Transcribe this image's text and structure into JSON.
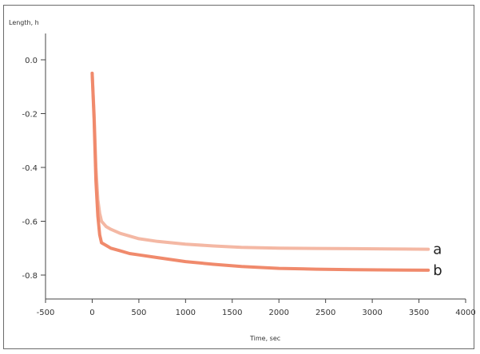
{
  "chart_data": {
    "type": "line",
    "xlabel": "Time, sec",
    "ylabel": "Length, h",
    "xlim": [
      -500,
      4000
    ],
    "ylim": [
      -0.9,
      0.05
    ],
    "xticks": [
      "-500",
      "0",
      "500",
      "1000",
      "1500",
      "2000",
      "2500",
      "3000",
      "3500",
      "4000"
    ],
    "yticks": [
      "0.0",
      "-0.2",
      "-0.4",
      "-0.6",
      "-0.8"
    ],
    "series": [
      {
        "name": "a",
        "color": "#f4b8a4",
        "x": [
          0,
          20,
          40,
          60,
          80,
          100,
          150,
          200,
          300,
          400,
          500,
          700,
          1000,
          1300,
          1600,
          2000,
          2400,
          2800,
          3200,
          3600
        ],
        "y": [
          -0.05,
          -0.2,
          -0.4,
          -0.52,
          -0.57,
          -0.6,
          -0.62,
          -0.63,
          -0.645,
          -0.655,
          -0.665,
          -0.675,
          -0.685,
          -0.692,
          -0.697,
          -0.7,
          -0.701,
          -0.702,
          -0.703,
          -0.704
        ]
      },
      {
        "name": "b",
        "color": "#f08a6c",
        "x": [
          0,
          20,
          40,
          60,
          80,
          100,
          150,
          200,
          300,
          400,
          500,
          700,
          1000,
          1300,
          1600,
          2000,
          2400,
          2800,
          3200,
          3600
        ],
        "y": [
          -0.05,
          -0.22,
          -0.45,
          -0.58,
          -0.65,
          -0.68,
          -0.69,
          -0.7,
          -0.71,
          -0.72,
          -0.725,
          -0.735,
          -0.75,
          -0.76,
          -0.768,
          -0.775,
          -0.778,
          -0.78,
          -0.781,
          -0.782
        ]
      }
    ],
    "grid": false
  }
}
